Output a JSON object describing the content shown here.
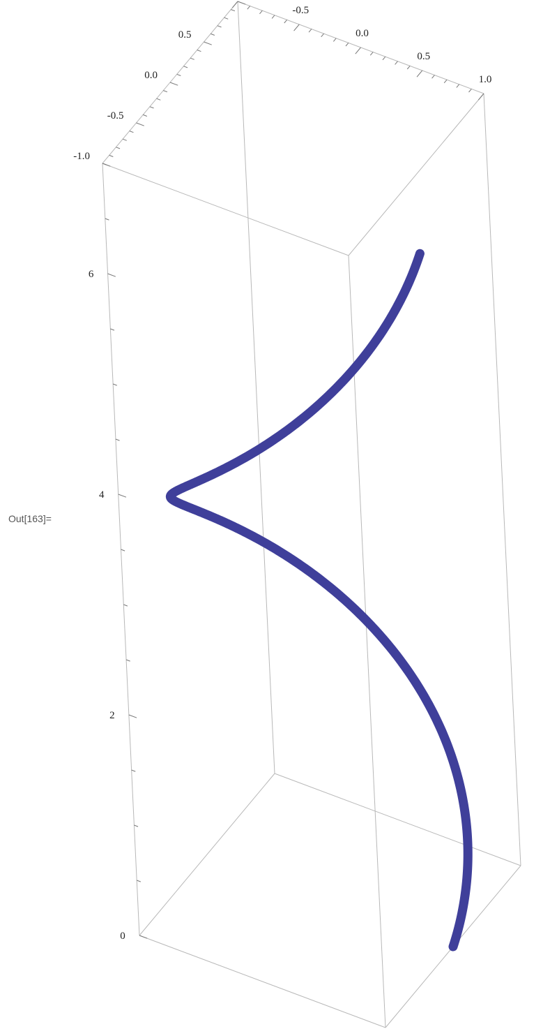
{
  "cell": {
    "out_label": "Out[163]="
  },
  "chart_data": {
    "type": "line",
    "title": "",
    "xlabel": "",
    "ylabel": "",
    "zlabel": "",
    "xlim": [
      -1.0,
      1.0
    ],
    "ylim": [
      -1.0,
      1.0
    ],
    "zlim": [
      0,
      7
    ],
    "x_ticks": [
      "-1.0",
      "-0.5",
      "0.0",
      "0.5",
      "1.0"
    ],
    "y_ticks": [
      "-1.0",
      "-0.5",
      "0.0",
      "0.5",
      "1.0"
    ],
    "z_ticks": [
      "0",
      "2",
      "4",
      "6"
    ],
    "series": [
      {
        "parametric": "x = cos(t), y = sin(t), z = t",
        "t_range": [
          0,
          6.2832
        ],
        "points": [
          {
            "x": 1.0,
            "y": 0.0,
            "z": 0.0
          },
          {
            "x": 0.0,
            "y": 1.0,
            "z": 1.57
          },
          {
            "x": -1.0,
            "y": 0.0,
            "z": 3.14
          },
          {
            "x": 0.0,
            "y": -1.0,
            "z": 4.71
          },
          {
            "x": 1.0,
            "y": 0.0,
            "z": 6.28
          }
        ]
      }
    ],
    "line_color": "#3f3f9a",
    "box_color": "#b8b8b8",
    "grid": false
  }
}
